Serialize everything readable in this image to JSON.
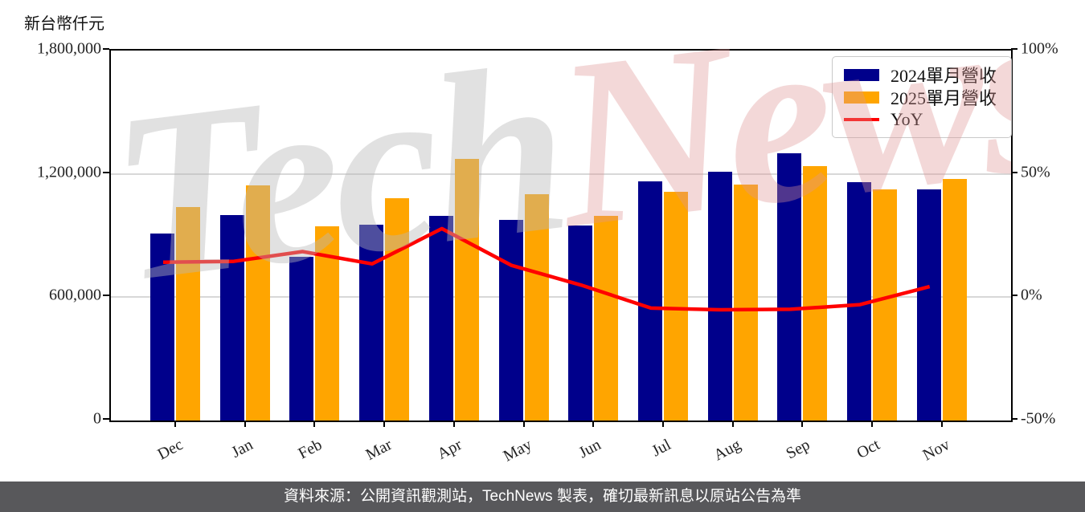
{
  "chart": {
    "unit_label": "新台幣仟元"
  },
  "chart_data": {
    "type": "bar",
    "title": "",
    "xlabel": "",
    "ylabel_left": "新台幣仟元",
    "ylabel_right": "%",
    "categories": [
      "Dec",
      "Jan",
      "Feb",
      "Mar",
      "Apr",
      "May",
      "Jun",
      "Jul",
      "Aug",
      "Sep",
      "Oct",
      "Nov"
    ],
    "series": [
      {
        "name": "2024單月營收",
        "type": "bar",
        "axis": "left",
        "color": "#00008B",
        "values": [
          910000,
          1000000,
          797000,
          953000,
          996000,
          976000,
          949000,
          1164000,
          1209000,
          1300000,
          1161000,
          1126000
        ]
      },
      {
        "name": "2025單月營收",
        "type": "bar",
        "axis": "left",
        "color": "#FFA500",
        "values": [
          1039000,
          1145000,
          945000,
          1082000,
          1273000,
          1102000,
          996000,
          1113000,
          1148000,
          1238000,
          1126000,
          1174000
        ]
      },
      {
        "name": "YoY",
        "type": "line",
        "axis": "right",
        "color": "#FF0000",
        "values": [
          14.2,
          14.5,
          18.5,
          13.5,
          27.8,
          12.9,
          4.9,
          -4.4,
          -5.1,
          -4.9,
          -3.0,
          4.3
        ]
      }
    ],
    "left_axis": {
      "min": 0,
      "max": 1800000,
      "ticks": [
        {
          "value": 0,
          "label": "0"
        },
        {
          "value": 600000,
          "label": "600,000"
        },
        {
          "value": 1200000,
          "label": "1,200,000"
        },
        {
          "value": 1800000,
          "label": "1,800,000"
        }
      ]
    },
    "right_axis": {
      "min": -50,
      "max": 100,
      "ticks": [
        {
          "value": -50,
          "label": "-50%"
        },
        {
          "value": 0,
          "label": "0%"
        },
        {
          "value": 50,
          "label": "50%"
        },
        {
          "value": 100,
          "label": "100%"
        }
      ]
    },
    "gridline_values": [
      600000,
      1200000
    ],
    "gridline_color": "#d8d8d8",
    "grid": true,
    "legend_position": "top-right"
  },
  "watermark": {
    "gray_text": "Tech",
    "pink_text": "News",
    "gray_color": "#B9B9B9",
    "pink_color": "#DE9595"
  },
  "footer": {
    "text": "資料來源：公開資訊觀測站，TechNews 製表，確切最新訊息以原站公告為準",
    "background": "#58585B"
  }
}
